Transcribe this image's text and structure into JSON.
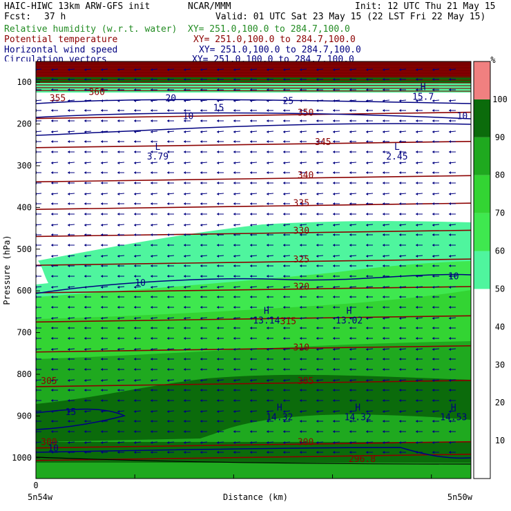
{
  "header": {
    "model": "HAIC-HIWC 13km ARW-GFS init",
    "center": "NCAR/MMM",
    "init": "Init: 12 UTC Thu 21 May 15",
    "fcst_label": "Fcst:",
    "fcst_value": "37 h",
    "valid": "Valid: 01 UTC Sat 23 May 15 (22 LST Fri 22 May 15)",
    "fields": [
      {
        "name": "Relative humidity (w.r.t. water)",
        "xy": "XY= 251.0,100.0 to 284.7,100.0",
        "color": "#228b22"
      },
      {
        "name": "Potential temperature",
        "xy": "XY= 251.0,100.0 to 284.7,100.0",
        "color": "#8b0000"
      },
      {
        "name": "Horizontal wind speed",
        "xy": "XY= 251.0,100.0 to 284.7,100.0",
        "color": "#000080"
      },
      {
        "name": "Circulation vectors",
        "xy": "XY= 251.0,100.0 to 284.7,100.0",
        "color": "#000080"
      }
    ]
  },
  "chart_data": {
    "type": "heatmap",
    "title": "",
    "xlabel": "Distance (km)",
    "ylabel": "Pressure (hPa)",
    "x_tick_labels": [
      "0"
    ],
    "x_endpoints": [
      "5n54w",
      "5n50w"
    ],
    "y_ticks": [
      100,
      200,
      300,
      400,
      500,
      600,
      700,
      800,
      900,
      1000
    ],
    "ylim": [
      1050,
      50
    ],
    "colorbar": {
      "unit": "%",
      "ticks": [
        10,
        20,
        30,
        40,
        50,
        60,
        70,
        80,
        90,
        100
      ],
      "bands": [
        {
          "from": 50,
          "to": 60,
          "color": "#4ff59e"
        },
        {
          "from": 60,
          "to": 70,
          "color": "#3fe84f"
        },
        {
          "from": 70,
          "to": 80,
          "color": "#33d433"
        },
        {
          "from": 80,
          "to": 90,
          "color": "#1fa91f"
        },
        {
          "from": 90,
          "to": 100,
          "color": "#0b6b0b"
        },
        {
          "from": 100,
          "to": 110,
          "color": "#f08080"
        }
      ]
    },
    "theta_labels": [
      {
        "value": "355",
        "p": 145,
        "x": 0.05
      },
      {
        "value": "360",
        "p": 130,
        "x": 0.14
      },
      {
        "value": "350",
        "p": 180,
        "x": 0.62
      },
      {
        "value": "345",
        "p": 250,
        "x": 0.66
      },
      {
        "value": "340",
        "p": 330,
        "x": 0.62
      },
      {
        "value": "335",
        "p": 397,
        "x": 0.61
      },
      {
        "value": "330",
        "p": 463,
        "x": 0.61
      },
      {
        "value": "325",
        "p": 532,
        "x": 0.61
      },
      {
        "value": "320",
        "p": 597,
        "x": 0.61
      },
      {
        "value": "315",
        "p": 680,
        "x": 0.58
      },
      {
        "value": "310",
        "p": 743,
        "x": 0.61
      },
      {
        "value": "305",
        "p": 823,
        "x": 0.62
      },
      {
        "value": "305",
        "p": 823,
        "x": 0.03
      },
      {
        "value": "300",
        "p": 970,
        "x": 0.62
      },
      {
        "value": "300",
        "p": 970,
        "x": 0.03
      },
      {
        "value": "296.8",
        "p": 1010,
        "x": 0.75
      }
    ],
    "speed_labels": [
      {
        "value": "20",
        "p": 145,
        "x": 0.31
      },
      {
        "value": "15",
        "p": 168,
        "x": 0.42
      },
      {
        "value": "10",
        "p": 188,
        "x": 0.35
      },
      {
        "value": "10",
        "p": 188,
        "x": 0.98
      },
      {
        "value": "25",
        "p": 152,
        "x": 0.58
      },
      {
        "value": "10",
        "p": 588,
        "x": 0.24
      },
      {
        "value": "10",
        "p": 572,
        "x": 0.96
      },
      {
        "value": "15",
        "p": 898,
        "x": 0.08
      },
      {
        "value": "10",
        "p": 985,
        "x": 0.04
      }
    ],
    "extrema": [
      {
        "type": "L",
        "value": "3.79",
        "p": 285,
        "x": 0.28
      },
      {
        "type": "L",
        "value": "2.45",
        "p": 285,
        "x": 0.83
      },
      {
        "type": "H",
        "value": "15.7",
        "p": 142,
        "x": 0.89
      },
      {
        "type": "H",
        "value": "13.14",
        "p": 678,
        "x": 0.53
      },
      {
        "type": "H",
        "value": "13.02",
        "p": 678,
        "x": 0.72
      },
      {
        "type": "H",
        "value": "14.32",
        "p": 910,
        "x": 0.56
      },
      {
        "type": "H",
        "value": "14.32",
        "p": 910,
        "x": 0.74
      },
      {
        "type": "H",
        "value": "14.53",
        "p": 910,
        "x": 0.96
      }
    ]
  }
}
